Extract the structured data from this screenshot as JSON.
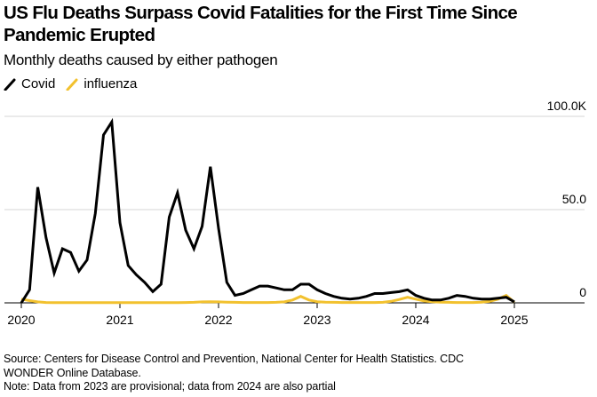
{
  "header": {
    "title": "US Flu Deaths Surpass Covid Fatalities for the First Time Since Pandemic Erupted",
    "subtitle": "Monthly deaths caused by either pathogen"
  },
  "legend": [
    {
      "label": "Covid",
      "color": "#000000"
    },
    {
      "label": "influenza",
      "color": "#f2c12e"
    }
  ],
  "footer": {
    "source": "Source: Centers for Disease Control and Prevention, National Center for Health Statistics. CDC WONDER Online Database.",
    "note": "Note: Data from 2023 are provisional; data from 2024 are also partial"
  },
  "chart_data": {
    "type": "line",
    "title": "US Flu Deaths Surpass Covid Fatalities for the First Time Since Pandemic Erupted",
    "subtitle": "Monthly deaths caused by either pathogen",
    "xlabel": "",
    "ylabel": "",
    "units": "thousands of deaths",
    "x_start": "2020-01",
    "x_frequency": "monthly",
    "x_ticks": [
      "2020",
      "2021",
      "2022",
      "2023",
      "2024",
      "2025"
    ],
    "x_range_years": [
      2019.85,
      2025.75
    ],
    "y_ticks": [
      {
        "value": 0,
        "label": "0"
      },
      {
        "value": 50,
        "label": "50.0"
      },
      {
        "value": 100,
        "label": "100.0K"
      }
    ],
    "ylim": [
      0,
      100
    ],
    "grid": true,
    "y_axis_side": "right",
    "legend_position": "top-left",
    "series": [
      {
        "name": "Covid",
        "color": "#000000",
        "values": [
          0,
          7,
          62,
          35,
          16,
          29,
          27,
          17,
          23,
          48,
          90,
          97,
          43,
          20,
          15,
          11,
          6,
          10,
          46,
          59,
          39,
          29,
          41,
          73,
          40,
          11,
          4,
          5,
          7,
          9,
          9,
          8,
          7,
          7,
          10,
          10,
          7,
          5,
          3.5,
          2.5,
          2,
          2.5,
          3.5,
          5,
          5,
          5.5,
          6,
          7,
          4,
          2.5,
          1.5,
          1.5,
          2.5,
          4,
          3.5,
          2.5,
          2,
          2,
          2.5,
          3,
          0.5
        ]
      },
      {
        "name": "influenza",
        "color": "#f2c12e",
        "values": [
          2,
          1.2,
          0.5,
          0.2,
          0.1,
          0.1,
          0.1,
          0.1,
          0.1,
          0.1,
          0.1,
          0.1,
          0.1,
          0.1,
          0.1,
          0.1,
          0.1,
          0.1,
          0.1,
          0.1,
          0.2,
          0.3,
          0.5,
          0.6,
          0.5,
          0.4,
          0.3,
          0.2,
          0.2,
          0.2,
          0.2,
          0.3,
          0.5,
          1.5,
          3.5,
          1.5,
          0.6,
          0.4,
          0.3,
          0.2,
          0.2,
          0.2,
          0.2,
          0.2,
          0.3,
          0.8,
          1.8,
          3,
          2,
          1,
          0.6,
          0.4,
          0.3,
          0.2,
          0.2,
          0.2,
          0.4,
          0.8,
          2,
          4,
          0.3
        ]
      }
    ]
  }
}
